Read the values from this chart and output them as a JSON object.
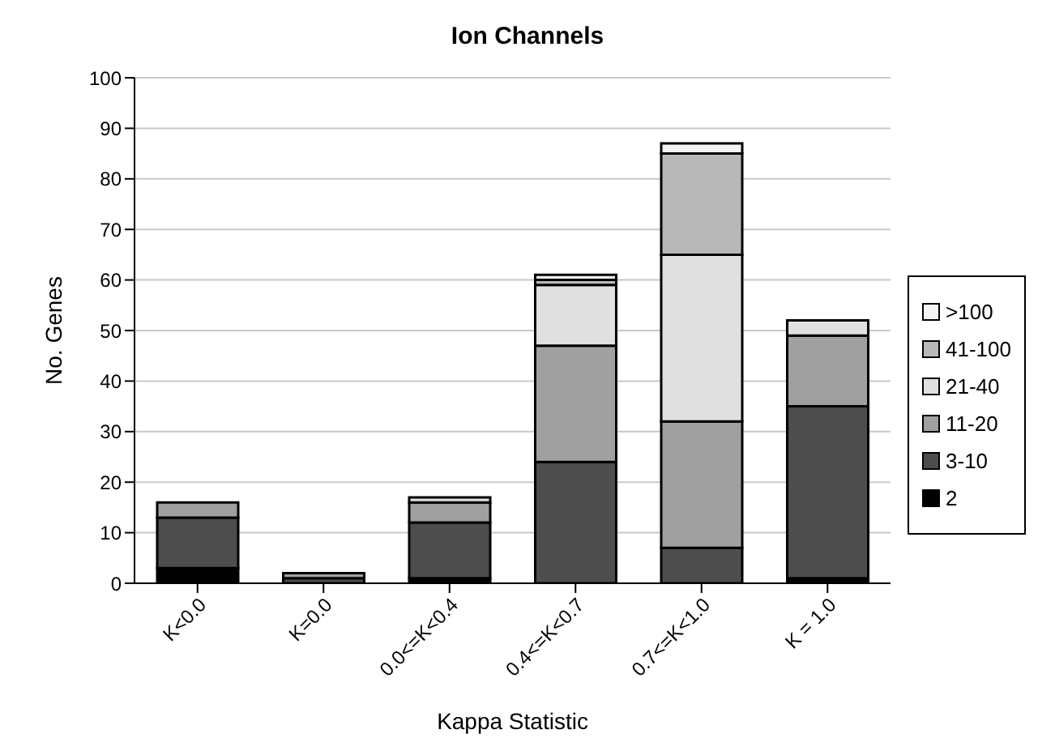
{
  "chart_data": {
    "type": "bar",
    "title": "Ion Channels",
    "xlabel": "Kappa Statistic",
    "ylabel": "No. Genes",
    "categories": [
      "K<0.0",
      "K=0.0",
      "0.0<=K<0.4",
      "0.4<=K<0.7",
      "0.7<=K<1.0",
      "K = 1.0"
    ],
    "stacked": true,
    "series": [
      {
        "name": "2",
        "color": "#000000",
        "values": [
          3,
          0,
          1,
          0,
          0,
          1
        ]
      },
      {
        "name": "3-10",
        "color": "#4d4d4d",
        "values": [
          10,
          1,
          11,
          24,
          7,
          34
        ]
      },
      {
        "name": "11-20",
        "color": "#a0a0a0",
        "values": [
          3,
          1,
          4,
          23,
          25,
          14
        ]
      },
      {
        "name": "21-40",
        "color": "#e0e0e0",
        "values": [
          0,
          0,
          1,
          12,
          33,
          3
        ]
      },
      {
        "name": "41-100",
        "color": "#b8b8b8",
        "values": [
          0,
          0,
          0,
          1,
          20,
          0
        ]
      },
      {
        "name": ">100",
        "color": "#f4f4f4",
        "values": [
          0,
          0,
          0,
          1,
          2,
          0
        ]
      }
    ],
    "ylim": [
      0,
      100
    ],
    "yticks": [
      0,
      10,
      20,
      30,
      40,
      50,
      60,
      70,
      80,
      90,
      100
    ],
    "grid": "y",
    "legend": "right"
  }
}
